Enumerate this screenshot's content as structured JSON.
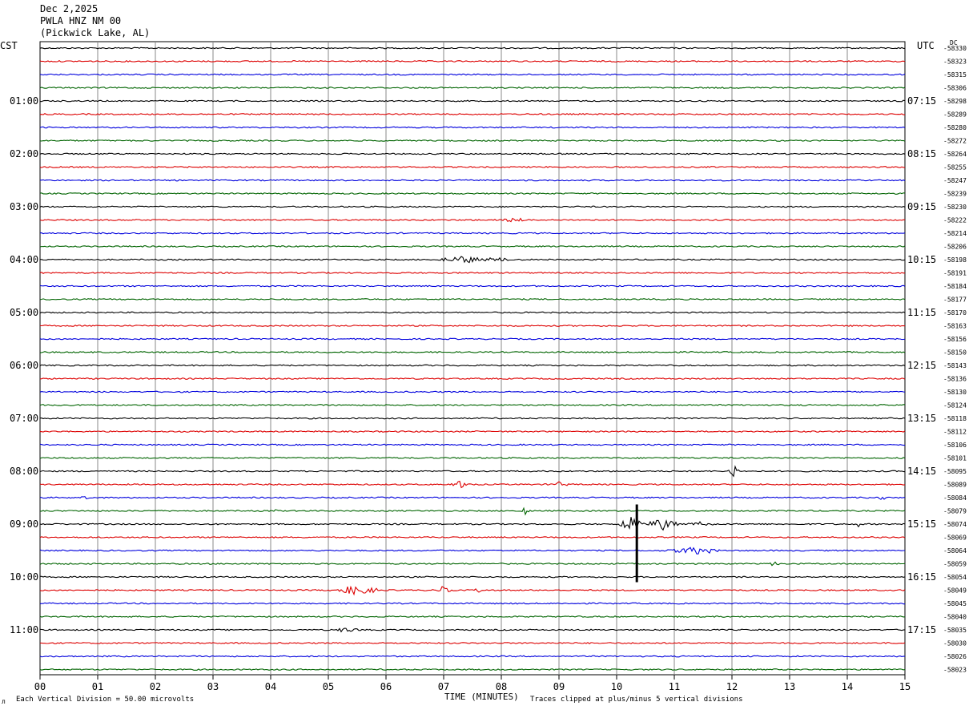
{
  "header": {
    "date": "Dec 2,2025",
    "station": "PWLA HNZ NM 00",
    "location": "(Pickwick Lake, AL)"
  },
  "left_tz": "CST",
  "right_tz": "UTC",
  "dc_label": "DC",
  "footer": {
    "scale_note": "Each Vertical Division =   50.00 microvolts",
    "clip_note": "Traces clipped at plus/minus 5 vertical divisions",
    "x_title": "TIME (MINUTES)"
  },
  "chart_data": {
    "type": "line",
    "title": "",
    "xlabel": "TIME (MINUTES)",
    "xlim": [
      0,
      15
    ],
    "x_ticks": [
      "00",
      "01",
      "02",
      "03",
      "04",
      "05",
      "06",
      "07",
      "08",
      "09",
      "10",
      "11",
      "12",
      "13",
      "14",
      "15"
    ],
    "trace_colors": [
      "#000000",
      "#dd0000",
      "#0000dd",
      "#006400"
    ],
    "trace_count": 48,
    "left_hour_labels": [
      "01:00",
      "02:00",
      "03:00",
      "04:00",
      "05:00",
      "06:00",
      "07:00",
      "08:00",
      "09:00",
      "10:00",
      "11:00"
    ],
    "right_hour_labels": [
      "07:15",
      "08:15",
      "09:15",
      "10:15",
      "11:15",
      "12:15",
      "13:15",
      "14:15",
      "15:15",
      "16:15",
      "17:15"
    ],
    "dc_values": [
      "-58330",
      "-58323",
      "-58315",
      "-58306",
      "-58298",
      "-58289",
      "-58280",
      "-58272",
      "-58264",
      "-58255",
      "-58247",
      "-58239",
      "-58230",
      "-58222",
      "-58214",
      "-58206",
      "-58198",
      "-58191",
      "-58184",
      "-58177",
      "-58170",
      "-58163",
      "-58156",
      "-58150",
      "-58143",
      "-58136",
      "-58130",
      "-58124",
      "-58118",
      "-58112",
      "-58106",
      "-58101",
      "-58095",
      "-58089",
      "-58084",
      "-58079",
      "-58074",
      "-58069",
      "-58064",
      "-58059",
      "-58054",
      "-58049",
      "-58045",
      "-58040",
      "-58035",
      "-58030",
      "-58026",
      "-58023"
    ],
    "events": [
      {
        "trace": 13,
        "minute": 8.2,
        "amp": 0.4,
        "dur": 0.4
      },
      {
        "trace": 16,
        "minute": 7.3,
        "amp": 0.8,
        "dur": 0.6
      },
      {
        "trace": 16,
        "minute": 7.9,
        "amp": 0.6,
        "dur": 0.3
      },
      {
        "trace": 28,
        "minute": 1.6,
        "amp": 0.4,
        "dur": 0.1
      },
      {
        "trace": 32,
        "minute": 12.0,
        "amp": 2.2,
        "dur": 0.15
      },
      {
        "trace": 33,
        "minute": 7.3,
        "amp": 0.8,
        "dur": 0.2
      },
      {
        "trace": 33,
        "minute": 9.0,
        "amp": 0.5,
        "dur": 0.2
      },
      {
        "trace": 34,
        "minute": 0.8,
        "amp": 0.5,
        "dur": 0.1
      },
      {
        "trace": 34,
        "minute": 14.6,
        "amp": 0.5,
        "dur": 0.1
      },
      {
        "trace": 35,
        "minute": 8.4,
        "amp": 0.8,
        "dur": 0.1
      },
      {
        "trace": 35,
        "minute": 4.1,
        "amp": 0.6,
        "dur": 0.1
      },
      {
        "trace": 36,
        "minute": 10.25,
        "amp": 1.6,
        "dur": 0.25
      },
      {
        "trace": 36,
        "minute": 10.8,
        "amp": 1.4,
        "dur": 0.3
      },
      {
        "trace": 36,
        "minute": 11.45,
        "amp": 0.6,
        "dur": 0.3
      },
      {
        "trace": 36,
        "minute": 14.2,
        "amp": 0.6,
        "dur": 0.05
      },
      {
        "trace": 38,
        "minute": 11.3,
        "amp": 0.8,
        "dur": 0.6
      },
      {
        "trace": 39,
        "minute": 12.75,
        "amp": 0.6,
        "dur": 0.1
      },
      {
        "trace": 41,
        "minute": 5.5,
        "amp": 1.0,
        "dur": 0.5
      },
      {
        "trace": 41,
        "minute": 7.0,
        "amp": 0.8,
        "dur": 0.15
      },
      {
        "trace": 41,
        "minute": 7.6,
        "amp": 0.5,
        "dur": 0.1
      },
      {
        "trace": 44,
        "minute": 5.3,
        "amp": 0.5,
        "dur": 0.3
      }
    ],
    "spike": {
      "minute": 10.35,
      "from_trace": 35,
      "to_trace": 41
    }
  }
}
